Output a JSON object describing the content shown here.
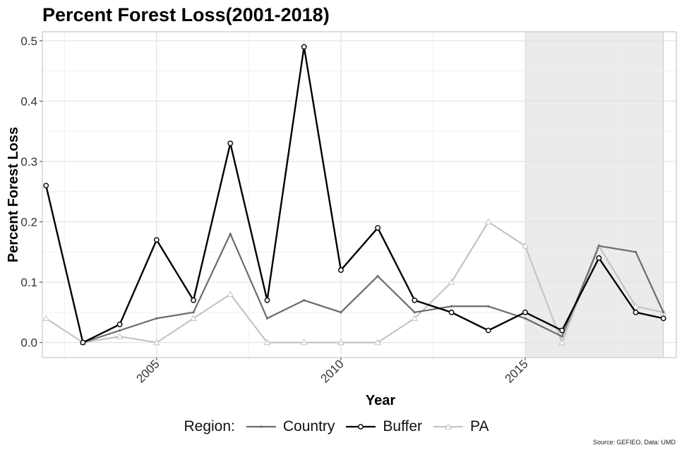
{
  "chart_data": {
    "type": "line",
    "title": "Percent Forest Loss(2001-2018)",
    "xlabel": "Year",
    "ylabel": "Percent Forest Loss",
    "xlim": [
      2001.9,
      2019.1
    ],
    "ylim": [
      -0.025,
      0.515
    ],
    "xticks": [
      2005,
      2010,
      2015
    ],
    "yticks": [
      0.0,
      0.1,
      0.2,
      0.3,
      0.4,
      0.5
    ],
    "ytick_labels": [
      "0.0",
      "0.1",
      "0.2",
      "0.3",
      "0.4",
      "0.5"
    ],
    "grid": true,
    "shaded_region": [
      2015,
      2018.75
    ],
    "x": [
      2002,
      2003,
      2004,
      2005,
      2006,
      2007,
      2008,
      2009,
      2010,
      2011,
      2012,
      2013,
      2014,
      2015,
      2016,
      2017,
      2018,
      2018.75
    ],
    "series": [
      {
        "name": "Country",
        "color": "#6b6b6b",
        "marker": "dot",
        "values": [
          null,
          0.0,
          0.02,
          0.04,
          0.05,
          0.18,
          0.04,
          0.07,
          0.05,
          0.11,
          0.05,
          0.06,
          0.06,
          0.04,
          0.01,
          0.16,
          0.15,
          0.05
        ]
      },
      {
        "name": "Buffer",
        "color": "#000000",
        "marker": "circle",
        "values": [
          0.26,
          0.0,
          0.03,
          0.17,
          0.07,
          0.33,
          0.07,
          0.49,
          0.12,
          0.19,
          0.07,
          0.05,
          0.02,
          0.05,
          0.02,
          0.14,
          0.05,
          0.04
        ]
      },
      {
        "name": "PA",
        "color": "#c4c4c4",
        "marker": "triangle",
        "values": [
          0.04,
          0.0,
          0.01,
          0.0,
          0.04,
          0.08,
          0.0,
          0.0,
          0.0,
          0.0,
          0.04,
          0.1,
          0.2,
          0.16,
          0.0,
          0.16,
          0.06,
          0.05
        ]
      }
    ],
    "legend": {
      "title": "Region:",
      "position": "bottom"
    },
    "source": "Source: GEFIEO, Data: UMD"
  }
}
